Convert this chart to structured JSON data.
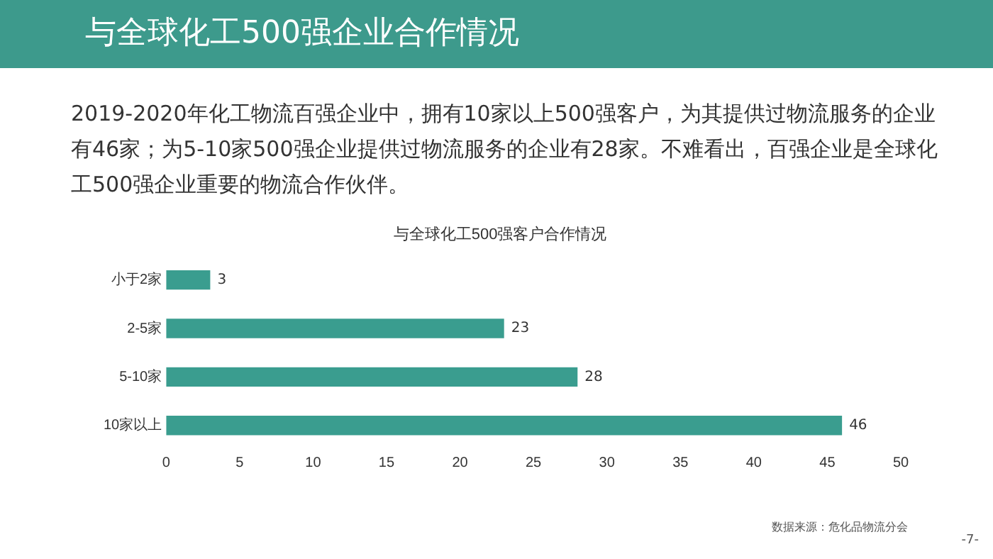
{
  "chart_data": {
    "type": "bar",
    "orientation": "horizontal",
    "title": "与全球化工500强客户合作情况",
    "categories": [
      "小于2家",
      "2-5家",
      "5-10家",
      "10家以上"
    ],
    "values": [
      3,
      23,
      28,
      46
    ],
    "color": "#3a9d8f",
    "xlim": [
      0,
      50
    ],
    "xticks": [
      0,
      5,
      10,
      15,
      20,
      25,
      30,
      35,
      40,
      45,
      50
    ],
    "grid": false,
    "legend": false,
    "data_labels": true,
    "annotations": [
      "与全球化工500强企业合作情况",
      "2019-2020年化工物流百强企业中，拥有10家以上500强客户，为其提供过物流服务的企业有46家；为5-10家500强企业提供过物流服务的企业有28家。不难看出，百强企业是全球化工500强企业重要的物流合作伙伴。",
      "数据来源：危化品物流分会",
      "-7-"
    ]
  }
}
